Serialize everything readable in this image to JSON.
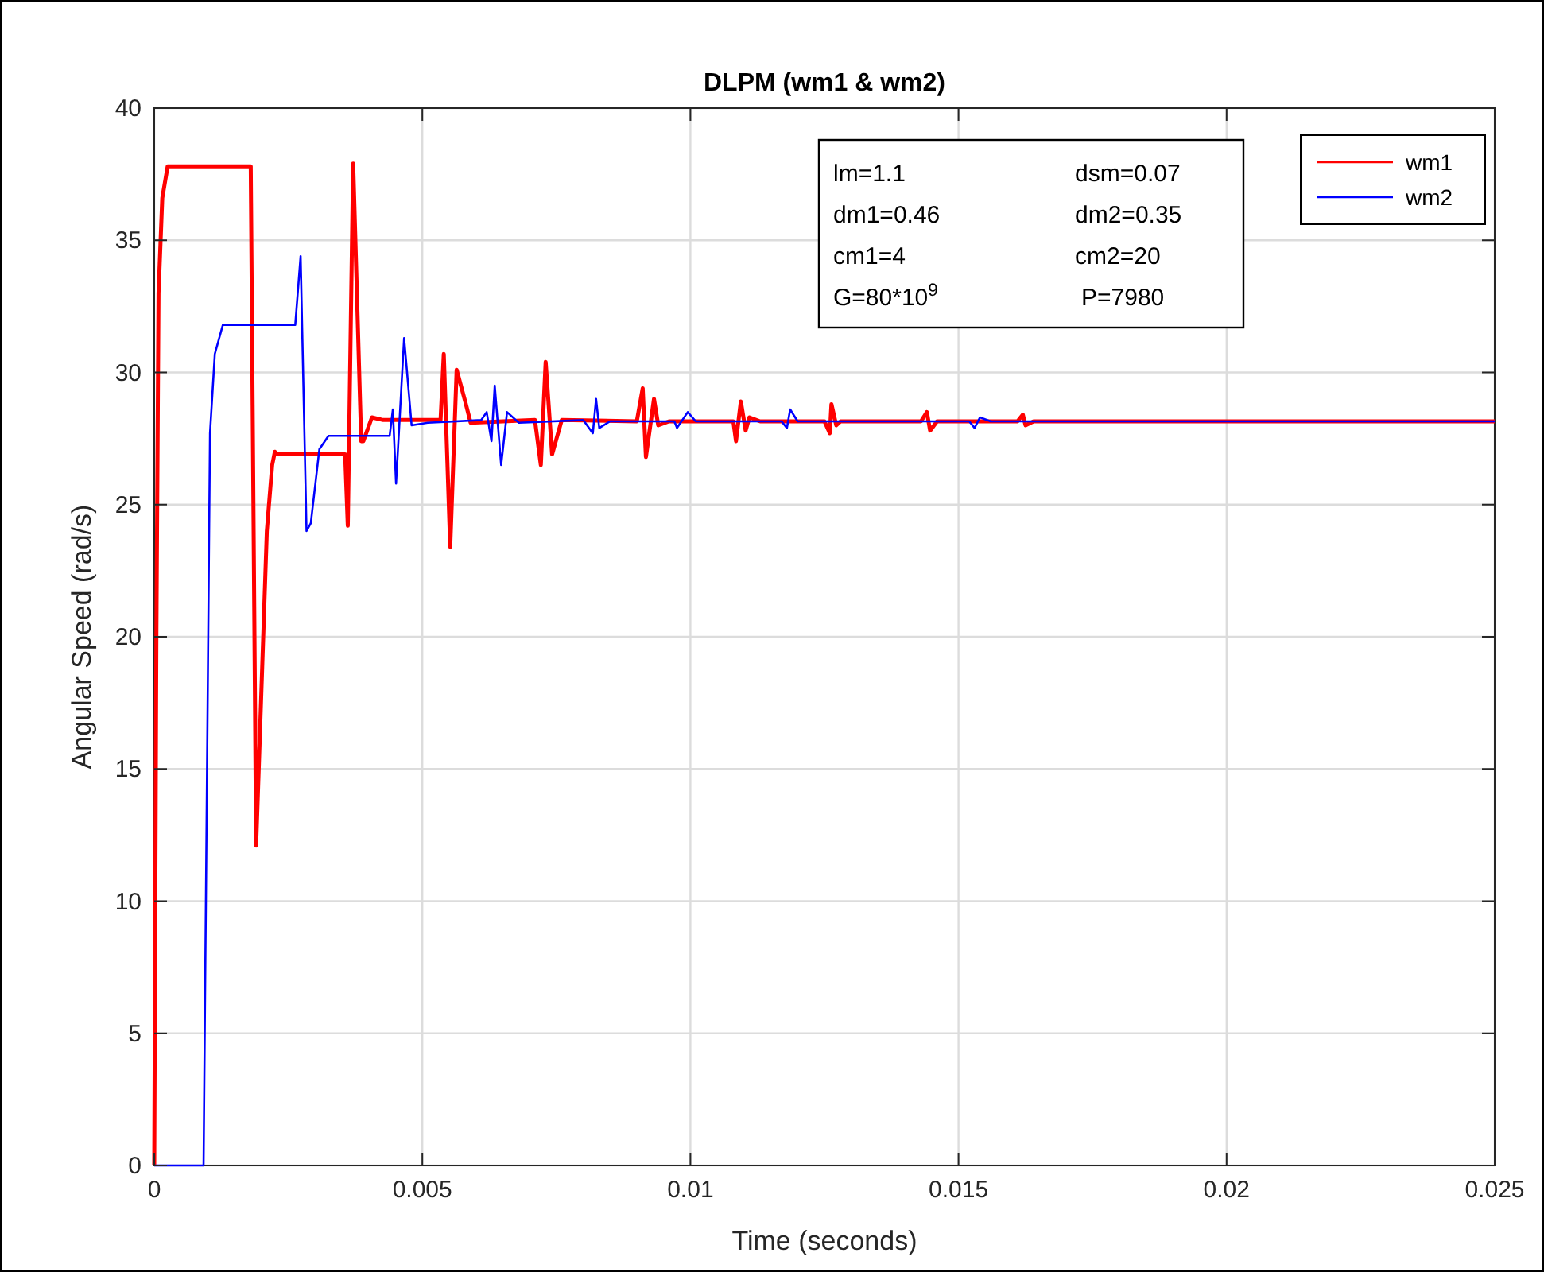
{
  "chart_data": {
    "type": "line",
    "title": "DLPM (wm1 & wm2)",
    "xlabel": "Time (seconds)",
    "ylabel": "Angular Speed (rad/s)",
    "xlim": [
      0,
      0.025
    ],
    "ylim": [
      0,
      40
    ],
    "xticks": [
      0,
      0.005,
      0.01,
      0.015,
      0.02,
      0.025
    ],
    "yticks": [
      0,
      5,
      10,
      15,
      20,
      25,
      30,
      35,
      40
    ],
    "grid": true,
    "legend": "top right",
    "marker": "none",
    "line_style": "solid",
    "annotations": [
      "lm=1.1",
      "dsm=0.07",
      "dm1=0.46",
      "dm2=0.35",
      "cm1=4",
      "cm2=20",
      "G=80*10$^{9}$",
      "P=7980"
    ],
    "series": [
      {
        "name": "wm1",
        "color": "#ff0000",
        "x": [
          0,
          4e-05,
          8e-05,
          0.00015,
          0.00025,
          0.0018,
          0.0019,
          0.0021,
          0.0022,
          0.00225,
          0.0023,
          0.00356,
          0.00361,
          0.00371,
          0.00386,
          0.0039,
          0.00406,
          0.00427,
          0.00534,
          0.0054,
          0.00552,
          0.00564,
          0.0058,
          0.0059,
          0.0071,
          0.00721,
          0.0073,
          0.00742,
          0.0076,
          0.009,
          0.00911,
          0.00917,
          0.00932,
          0.0094,
          0.0096,
          0.0108,
          0.01085,
          0.01094,
          0.01103,
          0.0111,
          0.0113,
          0.0125,
          0.0126,
          0.01263,
          0.01272,
          0.0128,
          0.0143,
          0.01441,
          0.01447,
          0.0146,
          0.0161,
          0.0162,
          0.01625,
          0.0164,
          0.025
        ],
        "values": [
          0,
          20,
          33,
          36.6,
          37.8,
          37.8,
          12.1,
          24,
          26.5,
          27,
          26.9,
          26.9,
          24.2,
          37.9,
          27.4,
          27.4,
          28.3,
          28.2,
          28.2,
          30.7,
          23.4,
          30.1,
          28.9,
          28.1,
          28.2,
          26.5,
          30.4,
          26.9,
          28.2,
          28.15,
          29.4,
          26.8,
          29,
          28,
          28.15,
          28.15,
          27.4,
          28.9,
          27.8,
          28.3,
          28.15,
          28.15,
          27.7,
          28.8,
          28,
          28.15,
          28.15,
          28.5,
          27.8,
          28.15,
          28.15,
          28.4,
          28,
          28.15,
          28.15
        ]
      },
      {
        "name": "wm2",
        "color": "#0000ff",
        "x": [
          0,
          0.00092,
          0.00104,
          0.00113,
          0.00128,
          0.00263,
          0.00273,
          0.00284,
          0.00292,
          0.00308,
          0.00325,
          0.00439,
          0.00445,
          0.00451,
          0.00466,
          0.0048,
          0.0051,
          0.0061,
          0.0062,
          0.00629,
          0.00635,
          0.00647,
          0.00658,
          0.0068,
          0.008,
          0.00818,
          0.00824,
          0.0083,
          0.0085,
          0.0097,
          0.00975,
          0.00995,
          0.0101,
          0.0117,
          0.0118,
          0.01186,
          0.012,
          0.0152,
          0.0153,
          0.0154,
          0.0156,
          0.025
        ],
        "values": [
          0,
          0,
          27.7,
          30.7,
          31.8,
          31.8,
          34.4,
          24,
          24.3,
          27.1,
          27.6,
          27.6,
          28.6,
          25.8,
          31.3,
          28,
          28.1,
          28.2,
          28.5,
          27.4,
          29.5,
          26.5,
          28.5,
          28.1,
          28.2,
          27.7,
          29,
          27.9,
          28.15,
          28.15,
          27.9,
          28.5,
          28.15,
          28.15,
          27.9,
          28.6,
          28.15,
          28.15,
          27.9,
          28.3,
          28.15,
          28.15
        ]
      }
    ]
  }
}
